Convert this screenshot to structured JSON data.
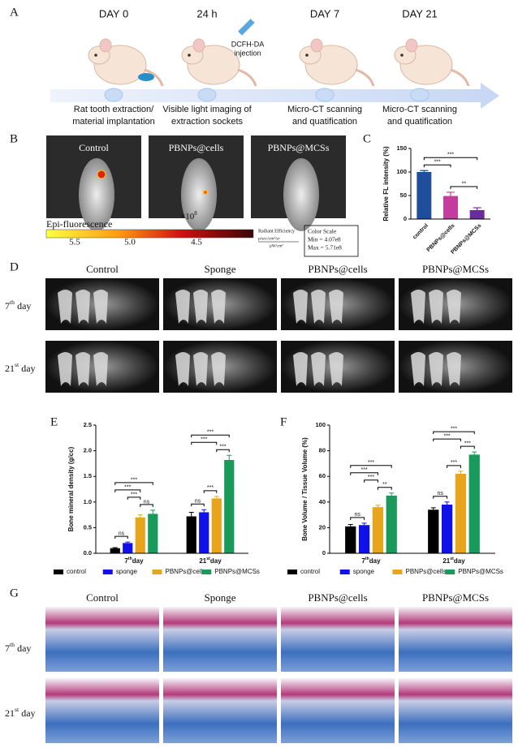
{
  "panels": [
    "A",
    "B",
    "C",
    "D",
    "E",
    "F",
    "G"
  ],
  "timeline": {
    "stages": [
      {
        "day": "DAY 0",
        "caption": [
          "Rat tooth extraction/",
          "material implantation"
        ]
      },
      {
        "day": "24 h",
        "caption": [
          "Visible light imaging of",
          "extraction sockets"
        ]
      },
      {
        "day": "DAY 7",
        "caption": [
          "Micro-CT scanning",
          "and quatification"
        ]
      },
      {
        "day": "DAY 21",
        "caption": [
          "Micro-CT scanning",
          "and quatification"
        ]
      }
    ],
    "injection": [
      "DCFH-DA",
      "injection"
    ]
  },
  "imaging": {
    "groups": [
      "Control",
      "PBNPs@cells",
      "PBNPs@MCSs"
    ],
    "scale_title": "Epi-fluorescence",
    "multiplier": {
      "base": "×10",
      "exp": "8"
    },
    "scale_ticks": [
      "5.5",
      "5.0",
      "4.5"
    ],
    "unit_title": "Radiant Efficiency",
    "unit_num": "p/sec/cm²/sr",
    "unit_den": "μW/cm²",
    "color_scale": [
      "Color Scale",
      "Min = 4.07e8",
      "Max = 5.71e8"
    ]
  },
  "micro_ct": {
    "columns": [
      "Control",
      "Sponge",
      "PBNPs@cells",
      "PBNPs@MCSs"
    ],
    "rows": [
      [
        "7",
        "th",
        " day"
      ],
      [
        "21",
        "st",
        " day"
      ]
    ]
  },
  "histology": {
    "columns": [
      "Control",
      "Sponge",
      "PBNPs@cells",
      "PBNPs@MCSs"
    ],
    "rows": [
      [
        "7",
        "th",
        " day"
      ],
      [
        "21",
        "st",
        " day"
      ]
    ]
  },
  "chart_data": [
    {
      "type": "bar",
      "ylabel": "Relative FL intensity (%)",
      "categories": [
        "control",
        "PBNPs@cells",
        "PBNPs@MCSs"
      ],
      "values": [
        100,
        49,
        19
      ],
      "errors": [
        3,
        8,
        5
      ],
      "colors": [
        "#1f4e9c",
        "#c43d9e",
        "#6a2c9c"
      ],
      "ylim": [
        0,
        150
      ],
      "yticks": [
        0,
        50,
        100,
        150
      ],
      "significance": [
        {
          "pair": [
            "PBNPs@cells",
            "PBNPs@MCSs"
          ],
          "label": "**"
        },
        {
          "pair": [
            "control",
            "PBNPs@cells"
          ],
          "label": "***"
        },
        {
          "pair": [
            "control",
            "PBNPs@MCSs"
          ],
          "label": "***"
        }
      ]
    },
    {
      "type": "grouped_bar",
      "ylabel": "Bone mineral density (g/cc)",
      "categories": [
        [
          "7",
          "th",
          "day"
        ],
        [
          "21",
          "st",
          "day"
        ]
      ],
      "series": [
        {
          "name": "control",
          "color": "#000000",
          "values": [
            0.1,
            0.72
          ],
          "errors": [
            0.01,
            0.08
          ]
        },
        {
          "name": "sponge",
          "color": "#1010e8",
          "values": [
            0.2,
            0.8
          ],
          "errors": [
            0.02,
            0.05
          ]
        },
        {
          "name": "PBNPs@cells",
          "color": "#e8a51c",
          "values": [
            0.7,
            1.07
          ],
          "errors": [
            0.05,
            0.04
          ]
        },
        {
          "name": "PBNPs@MCSs",
          "color": "#1a9a5a",
          "values": [
            0.77,
            1.82
          ],
          "errors": [
            0.07,
            0.09
          ]
        }
      ],
      "ylim": [
        0,
        2.5
      ],
      "yticks": [
        {
          "value": 0,
          "label": "0.0"
        },
        0.5,
        {
          "value": 1,
          "label": "1.0"
        },
        1.5,
        {
          "value": 2,
          "label": "2.0"
        },
        2.5
      ],
      "significance": [
        [
          {
            "pair": [
              "control",
              "sponge"
            ],
            "label": "ns"
          },
          {
            "pair": [
              "PBNPs@cells",
              "PBNPs@MCSs"
            ],
            "label": "ns"
          },
          {
            "pair": [
              "sponge",
              "PBNPs@cells"
            ],
            "label": "***"
          },
          {
            "pair": [
              "control",
              "PBNPs@cells"
            ],
            "label": "***"
          },
          {
            "pair": [
              "control",
              "PBNPs@MCSs"
            ],
            "label": "***"
          }
        ],
        [
          {
            "pair": [
              "control",
              "sponge"
            ],
            "label": "ns"
          },
          {
            "pair": [
              "sponge",
              "PBNPs@cells"
            ],
            "label": "***"
          },
          {
            "pair": [
              "PBNPs@cells",
              "PBNPs@MCSs"
            ],
            "label": "***"
          },
          {
            "pair": [
              "control",
              "PBNPs@cells"
            ],
            "label": "***"
          },
          {
            "pair": [
              "control",
              "PBNPs@MCSs"
            ],
            "label": "***"
          }
        ]
      ]
    },
    {
      "type": "grouped_bar",
      "ylabel": "Bone Volume / Tissue Volume (%)",
      "categories": [
        [
          "7",
          "th",
          "day"
        ],
        [
          "21",
          "st",
          "day"
        ]
      ],
      "series": [
        {
          "name": "control",
          "color": "#000000",
          "values": [
            21,
            34
          ],
          "errors": [
            1.5,
            1.5
          ]
        },
        {
          "name": "sponge",
          "color": "#1010e8",
          "values": [
            22,
            38
          ],
          "errors": [
            1.5,
            2
          ]
        },
        {
          "name": "PBNPs@cells",
          "color": "#e8a51c",
          "values": [
            36,
            62
          ],
          "errors": [
            1.5,
            2
          ]
        },
        {
          "name": "PBNPs@MCSs",
          "color": "#1a9a5a",
          "values": [
            45,
            77
          ],
          "errors": [
            2,
            2
          ]
        }
      ],
      "ylim": [
        0,
        100
      ],
      "yticks": [
        0,
        20,
        40,
        60,
        80,
        100
      ],
      "significance": [
        [
          {
            "pair": [
              "control",
              "sponge"
            ],
            "label": "ns"
          },
          {
            "pair": [
              "PBNPs@cells",
              "PBNPs@MCSs"
            ],
            "label": "**"
          },
          {
            "pair": [
              "sponge",
              "PBNPs@cells"
            ],
            "label": "***"
          },
          {
            "pair": [
              "control",
              "PBNPs@cells"
            ],
            "label": "***"
          },
          {
            "pair": [
              "control",
              "PBNPs@MCSs"
            ],
            "label": "***"
          }
        ],
        [
          {
            "pair": [
              "control",
              "sponge"
            ],
            "label": "ns"
          },
          {
            "pair": [
              "sponge",
              "PBNPs@cells"
            ],
            "label": "***"
          },
          {
            "pair": [
              "PBNPs@cells",
              "PBNPs@MCSs"
            ],
            "label": "***"
          },
          {
            "pair": [
              "control",
              "PBNPs@cells"
            ],
            "label": "***"
          },
          {
            "pair": [
              "control",
              "PBNPs@MCSs"
            ],
            "label": "***"
          }
        ]
      ]
    }
  ]
}
